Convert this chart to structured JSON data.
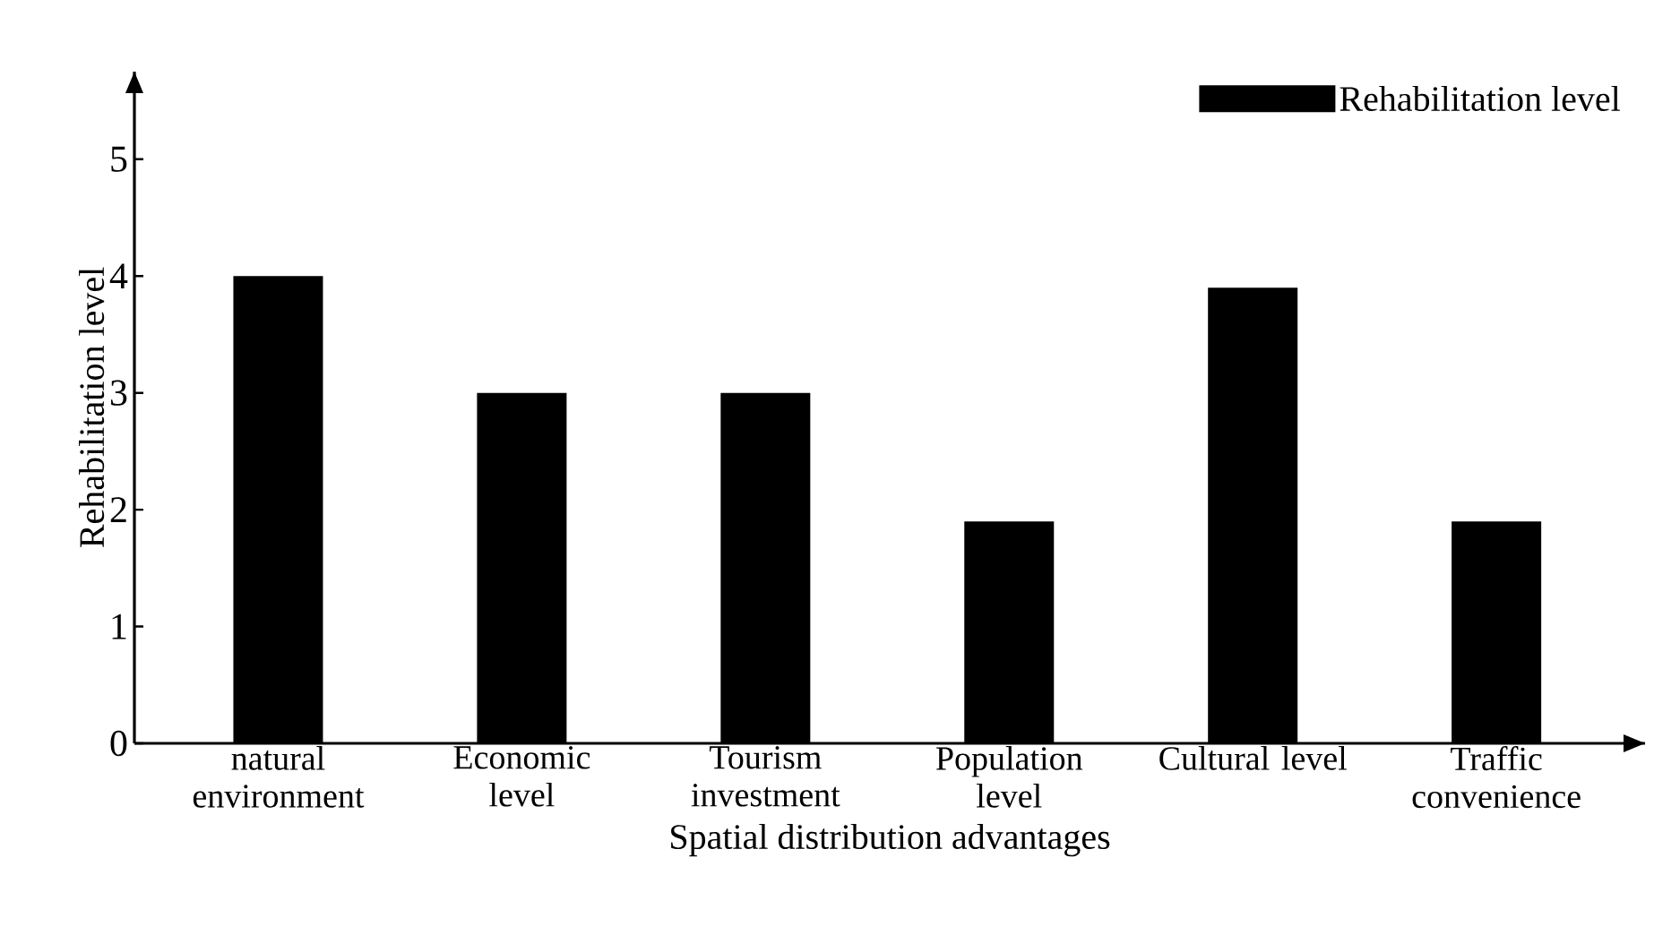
{
  "chart_data": {
    "type": "bar",
    "xlabel": "Spatial distribution advantages",
    "ylabel": "Rehabilitation level",
    "categories": [
      "natural environment",
      "Economic level",
      "Tourism investment",
      "Population level",
      "Cultural level",
      "Traffic convenience"
    ],
    "series": [
      {
        "name": "Rehabilitation level",
        "color": "#000000",
        "values": [
          4.0,
          3.0,
          3.0,
          1.9,
          3.9,
          1.9
        ]
      }
    ],
    "ylim": [
      0,
      5.75
    ],
    "yticks": [
      0,
      1,
      2,
      3,
      4,
      5
    ],
    "legend": "top right",
    "grid": false
  }
}
